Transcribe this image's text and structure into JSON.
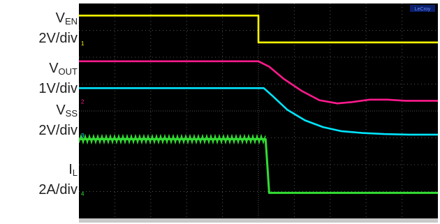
{
  "chart_data": {
    "type": "line",
    "title": "",
    "xlabel": "",
    "ylabel": "",
    "grid": true,
    "grid_divisions": {
      "x": 10,
      "y": 8
    },
    "xlim": [
      0,
      10
    ],
    "ylim": [
      -4,
      4
    ],
    "colors": {
      "background": "#000000",
      "grid": "#555555"
    },
    "channel_markers": [
      "1",
      "2",
      "3",
      "4"
    ],
    "badge_text": "LeCroy",
    "series": [
      {
        "name_main": "V",
        "name_sub": "EN",
        "scale": "2V/div",
        "color": "#ffff00",
        "marker": "1",
        "x": [
          0,
          5,
          5,
          10
        ],
        "y": [
          3.55,
          3.55,
          2.55,
          2.55
        ]
      },
      {
        "name_main": "V",
        "name_sub": "OUT",
        "scale": "1V/div",
        "color": "#ff1a8c",
        "marker": "2",
        "x": [
          0,
          5.0,
          5.3,
          5.7,
          6.2,
          6.7,
          7.2,
          7.6,
          8.1,
          8.6,
          9.1,
          10
        ],
        "y": [
          1.85,
          1.85,
          1.65,
          1.2,
          0.75,
          0.4,
          0.28,
          0.33,
          0.42,
          0.42,
          0.38,
          0.38
        ]
      },
      {
        "name_main": "V",
        "name_sub": "SS",
        "scale": "2V/div",
        "color": "#00e5ff",
        "marker": "3",
        "x": [
          0,
          5.15,
          5.4,
          5.8,
          6.3,
          6.8,
          7.3,
          7.9,
          8.5,
          9.2,
          10
        ],
        "y": [
          0.85,
          0.85,
          0.55,
          0.05,
          -0.35,
          -0.6,
          -0.75,
          -0.82,
          -0.86,
          -0.88,
          -0.88
        ]
      },
      {
        "name_main": "I",
        "name_sub": "L",
        "scale": "2A/div",
        "color": "#33dd33",
        "marker": "4",
        "x": [
          0,
          5.2,
          5.3,
          10
        ],
        "y": [
          -1.05,
          -1.05,
          -3.05,
          -3.05
        ]
      }
    ]
  }
}
